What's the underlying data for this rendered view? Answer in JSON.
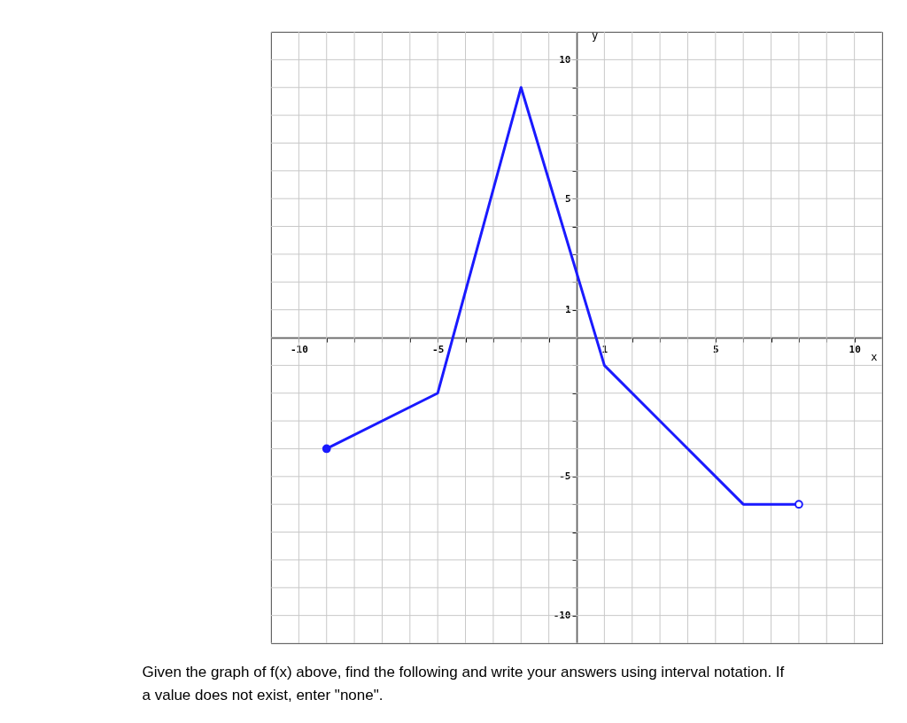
{
  "chart_data": {
    "type": "line",
    "xlabel": "x",
    "ylabel": "y",
    "xlim": [
      -11,
      11
    ],
    "ylim": [
      -11,
      11
    ],
    "xticks": [
      {
        "value": -11,
        "label": null
      },
      -10,
      {
        "value": -9,
        "label": null
      },
      {
        "value": -8,
        "label": null
      },
      {
        "value": -7,
        "label": null
      },
      {
        "value": -6,
        "label": null
      },
      -5,
      {
        "value": -4,
        "label": null
      },
      {
        "value": -3,
        "label": null
      },
      {
        "value": -2,
        "label": null
      },
      {
        "value": -1,
        "label": null
      },
      {
        "value": 0,
        "label": null
      },
      1,
      {
        "value": 2,
        "label": null
      },
      {
        "value": 3,
        "label": null
      },
      {
        "value": 4,
        "label": null
      },
      5,
      {
        "value": 6,
        "label": null
      },
      {
        "value": 7,
        "label": null
      },
      {
        "value": 8,
        "label": null
      },
      {
        "value": 9,
        "label": null
      },
      10,
      {
        "value": 11,
        "label": null
      }
    ],
    "yticks": [
      {
        "value": -11,
        "label": null
      },
      -10,
      {
        "value": -9,
        "label": null
      },
      {
        "value": -8,
        "label": null
      },
      {
        "value": -7,
        "label": null
      },
      {
        "value": -6,
        "label": null
      },
      -5,
      {
        "value": -4,
        "label": null
      },
      {
        "value": -3,
        "label": null
      },
      {
        "value": -2,
        "label": null
      },
      {
        "value": -1,
        "label": null
      },
      {
        "value": 0,
        "label": null
      },
      1,
      {
        "value": 2,
        "label": null
      },
      {
        "value": 3,
        "label": null
      },
      {
        "value": 4,
        "label": null
      },
      5,
      {
        "value": 6,
        "label": null
      },
      {
        "value": 7,
        "label": null
      },
      {
        "value": 8,
        "label": null
      },
      {
        "value": 9,
        "label": null
      },
      10,
      {
        "value": 11,
        "label": null
      }
    ],
    "grid": true,
    "line_style": "solid",
    "series": [
      {
        "type": "line",
        "color": "#1a1aff",
        "marker": "none",
        "x": [
          -9,
          -5,
          -2,
          1,
          6,
          8
        ],
        "values": [
          -4,
          -2,
          9,
          -1,
          -6,
          -6
        ]
      },
      {
        "type": "scatter",
        "color": "#1a1aff",
        "marker": "circle",
        "x": [
          -9
        ],
        "values": [
          -4
        ]
      },
      {
        "type": "scatter",
        "color": "#ffffff",
        "marker": "circle",
        "x": [
          8
        ],
        "values": [
          -6
        ]
      }
    ],
    "annotations": [
      "Given the graph of f(x) above, find the following and write your answers using interval notation. If a value does not exist, enter \"none\"."
    ]
  }
}
